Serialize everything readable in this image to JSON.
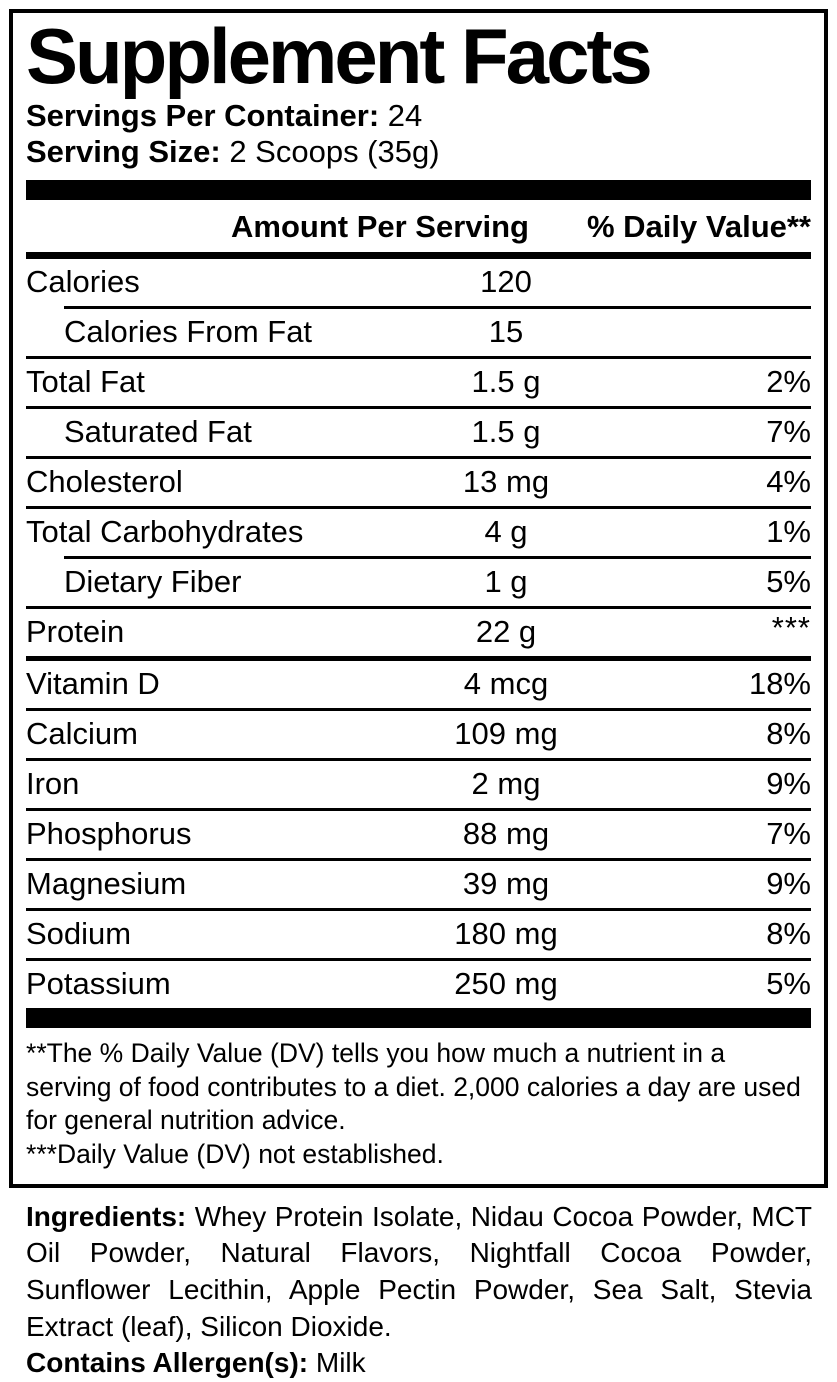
{
  "colors": {
    "ink": "#000000",
    "background": "#ffffff"
  },
  "title": "Supplement Facts",
  "servings": {
    "label": "Servings Per Container:",
    "value": "24"
  },
  "serving_size": {
    "label": "Serving Size:",
    "value": "2 Scoops (35g)"
  },
  "table": {
    "header": {
      "amount": "Amount Per Serving",
      "dv": "% Daily Value**"
    },
    "rows": [
      {
        "label": "Calories",
        "amount": "120",
        "dv": ""
      },
      {
        "label": "Calories From Fat",
        "amount": "15",
        "dv": ""
      },
      {
        "label": "Total Fat",
        "amount": "1.5 g",
        "dv": "2%"
      },
      {
        "label": "Saturated Fat",
        "amount": "1.5 g",
        "dv": "7%"
      },
      {
        "label": "Cholesterol",
        "amount": "13 mg",
        "dv": "4%"
      },
      {
        "label": "Total Carbohydrates",
        "amount": "4 g",
        "dv": "1%"
      },
      {
        "label": "Dietary Fiber",
        "amount": "1 g",
        "dv": "5%"
      },
      {
        "label": "Protein",
        "amount": "22 g",
        "dv": "***"
      },
      {
        "label": "Vitamin D",
        "amount": "4 mcg",
        "dv": "18%"
      },
      {
        "label": "Calcium",
        "amount": "109 mg",
        "dv": "8%"
      },
      {
        "label": "Iron",
        "amount": "2 mg",
        "dv": "9%"
      },
      {
        "label": "Phosphorus",
        "amount": "88 mg",
        "dv": "7%"
      },
      {
        "label": "Magnesium",
        "amount": "39 mg",
        "dv": "9%"
      },
      {
        "label": "Sodium",
        "amount": "180 mg",
        "dv": "8%"
      },
      {
        "label": "Potassium",
        "amount": "250 mg",
        "dv": "5%"
      }
    ]
  },
  "footnotes": {
    "dv_note": "**The % Daily Value (DV) tells you how much a nutrient in a serving of food contributes to a diet. 2,000 calories a day are used for general nutrition advice.",
    "not_established": "***Daily Value (DV) not established."
  },
  "ingredients": {
    "label": "Ingredients:",
    "text": "Whey Protein Isolate, Nidau Cocoa Powder, MCT Oil Powder, Natural Flavors, Nightfall Cocoa Powder, Sunflower Lecithin, Apple Pectin Powder, Sea Salt, Stevia Extract (leaf), Silicon Dioxide."
  },
  "allergens": {
    "label": "Contains Allergen(s):",
    "value": "Milk"
  }
}
